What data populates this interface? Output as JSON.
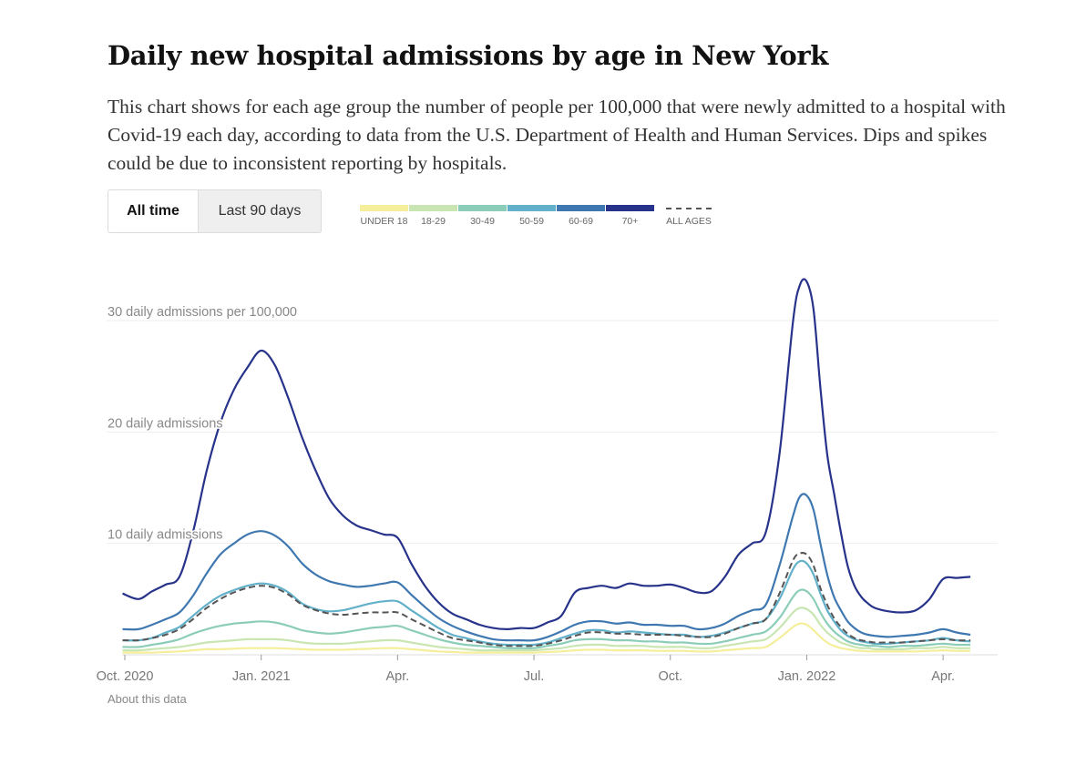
{
  "header": {
    "title": "Daily new hospital admissions by age in New York",
    "description": "This chart shows for each age group the number of people per 100,000 that were newly admitted to a hospital with Covid-19 each day, according to data from the U.S. Department of Health and Human Services. Dips and spikes could be due to inconsistent reporting by hospitals."
  },
  "toggle": {
    "all_time": "All time",
    "last_90": "Last 90 days"
  },
  "legend": {
    "items": [
      {
        "label": "UNDER 18",
        "color": "#f5ee9b"
      },
      {
        "label": "18-29",
        "color": "#c9e6b2"
      },
      {
        "label": "30-49",
        "color": "#8ccdb9"
      },
      {
        "label": "50-59",
        "color": "#62b0c9"
      },
      {
        "label": "60-69",
        "color": "#3f78b0"
      },
      {
        "label": "70+",
        "color": "#27338a"
      }
    ],
    "all_ages": {
      "label": "ALL AGES",
      "color": "#555555"
    }
  },
  "about_link": "About this data",
  "chart_data": {
    "type": "line",
    "title": "Daily new hospital admissions by age in New York",
    "ylabel": "daily admissions per 100,000",
    "ylim": [
      0,
      34
    ],
    "xlim": [
      0,
      19.2
    ],
    "y_ticks": [
      {
        "value": 10,
        "label": "10 daily admissions"
      },
      {
        "value": 20,
        "label": "20 daily admissions"
      },
      {
        "value": 30,
        "label": "30 daily admissions per 100,000"
      }
    ],
    "x_ticks": [
      {
        "value": 0,
        "label": "Oct. 2020"
      },
      {
        "value": 3,
        "label": "Jan. 2021"
      },
      {
        "value": 6,
        "label": "Apr."
      },
      {
        "value": 9,
        "label": "Jul."
      },
      {
        "value": 12,
        "label": "Oct."
      },
      {
        "value": 15,
        "label": "Jan. 2022"
      },
      {
        "value": 18,
        "label": "Apr."
      }
    ],
    "x": [
      -0.05,
      0.3,
      0.6,
      0.9,
      1.2,
      1.5,
      1.8,
      2.1,
      2.4,
      2.7,
      3.0,
      3.3,
      3.6,
      3.9,
      4.2,
      4.5,
      4.8,
      5.1,
      5.4,
      5.7,
      6.0,
      6.3,
      6.6,
      6.9,
      7.2,
      7.5,
      7.8,
      8.1,
      8.4,
      8.7,
      9.0,
      9.3,
      9.6,
      9.9,
      10.2,
      10.5,
      10.8,
      11.1,
      11.4,
      11.7,
      12.0,
      12.3,
      12.6,
      12.9,
      13.2,
      13.5,
      13.8,
      14.1,
      14.4,
      14.7,
      14.85,
      15.0,
      15.15,
      15.3,
      15.45,
      15.6,
      15.75,
      15.9,
      16.05,
      16.2,
      16.35,
      16.5,
      16.8,
      17.1,
      17.4,
      17.7,
      18.0,
      18.3,
      18.6
    ],
    "series": [
      {
        "name": "70+",
        "color": "#27338a",
        "values": [
          5.5,
          5.0,
          5.7,
          6.3,
          7.0,
          11.0,
          16.5,
          20.8,
          23.8,
          25.8,
          27.3,
          26.0,
          23.0,
          19.5,
          16.5,
          14.0,
          12.5,
          11.6,
          11.2,
          10.8,
          10.5,
          8.2,
          6.2,
          4.7,
          3.7,
          3.2,
          2.7,
          2.4,
          2.3,
          2.4,
          2.4,
          2.9,
          3.5,
          5.6,
          6.0,
          6.2,
          6.0,
          6.4,
          6.2,
          6.2,
          6.3,
          6.0,
          5.6,
          5.7,
          7.0,
          9.0,
          10.0,
          11.0,
          18.0,
          30.0,
          33.2,
          33.5,
          31.0,
          24.0,
          18.0,
          14.5,
          11.0,
          8.0,
          6.2,
          5.2,
          4.6,
          4.2,
          3.9,
          3.8,
          4.0,
          5.0,
          6.8,
          6.9,
          7.0
        ]
      },
      {
        "name": "60-69",
        "color": "#3f78b0",
        "values": [
          2.3,
          2.3,
          2.7,
          3.2,
          3.8,
          5.3,
          7.3,
          9.0,
          10.0,
          10.8,
          11.1,
          10.7,
          9.7,
          8.2,
          7.2,
          6.6,
          6.3,
          6.1,
          6.2,
          6.4,
          6.5,
          5.4,
          4.3,
          3.3,
          2.6,
          2.1,
          1.7,
          1.4,
          1.3,
          1.3,
          1.3,
          1.6,
          2.1,
          2.7,
          3.0,
          3.0,
          2.8,
          2.9,
          2.7,
          2.7,
          2.6,
          2.6,
          2.3,
          2.4,
          2.8,
          3.5,
          4.0,
          4.5,
          8.0,
          12.5,
          14.2,
          14.3,
          13.0,
          10.0,
          7.2,
          5.2,
          4.0,
          3.0,
          2.4,
          2.0,
          1.8,
          1.7,
          1.6,
          1.7,
          1.8,
          2.0,
          2.3,
          2.0,
          1.8
        ]
      },
      {
        "name": "50-59",
        "color": "#62b0c9",
        "values": [
          1.3,
          1.3,
          1.5,
          2.0,
          2.5,
          3.5,
          4.5,
          5.3,
          5.8,
          6.2,
          6.4,
          6.2,
          5.6,
          4.6,
          4.1,
          3.9,
          4.0,
          4.3,
          4.6,
          4.8,
          4.8,
          4.0,
          3.2,
          2.4,
          1.8,
          1.5,
          1.2,
          1.0,
          0.9,
          0.9,
          0.9,
          1.1,
          1.5,
          1.9,
          2.2,
          2.2,
          2.0,
          2.1,
          2.0,
          1.9,
          1.8,
          1.8,
          1.6,
          1.7,
          2.0,
          2.4,
          2.8,
          3.2,
          5.0,
          7.7,
          8.4,
          8.2,
          7.2,
          5.5,
          4.0,
          3.0,
          2.2,
          1.7,
          1.4,
          1.2,
          1.1,
          1.0,
          1.0,
          1.1,
          1.2,
          1.3,
          1.5,
          1.3,
          1.2
        ]
      },
      {
        "name": "30-49",
        "color": "#8ccdb9",
        "values": [
          0.7,
          0.7,
          0.9,
          1.1,
          1.4,
          1.9,
          2.3,
          2.6,
          2.8,
          2.9,
          3.0,
          2.9,
          2.6,
          2.2,
          2.0,
          1.9,
          2.0,
          2.2,
          2.4,
          2.5,
          2.6,
          2.2,
          1.8,
          1.4,
          1.1,
          0.9,
          0.8,
          0.7,
          0.6,
          0.6,
          0.6,
          0.8,
          1.0,
          1.3,
          1.4,
          1.4,
          1.3,
          1.3,
          1.2,
          1.2,
          1.1,
          1.1,
          1.0,
          1.0,
          1.2,
          1.5,
          1.8,
          2.1,
          3.3,
          5.2,
          5.8,
          5.7,
          5.0,
          3.8,
          2.8,
          2.1,
          1.6,
          1.2,
          1.0,
          0.9,
          0.8,
          0.8,
          0.7,
          0.8,
          0.8,
          0.9,
          1.0,
          0.9,
          0.9
        ]
      },
      {
        "name": "18-29",
        "color": "#c9e6b2",
        "values": [
          0.4,
          0.4,
          0.5,
          0.6,
          0.7,
          0.9,
          1.1,
          1.2,
          1.3,
          1.4,
          1.4,
          1.4,
          1.3,
          1.1,
          1.0,
          1.0,
          1.0,
          1.1,
          1.2,
          1.3,
          1.3,
          1.1,
          0.9,
          0.7,
          0.6,
          0.5,
          0.4,
          0.4,
          0.4,
          0.4,
          0.4,
          0.5,
          0.6,
          0.8,
          0.9,
          0.9,
          0.8,
          0.8,
          0.8,
          0.7,
          0.7,
          0.7,
          0.6,
          0.6,
          0.8,
          1.0,
          1.2,
          1.4,
          2.4,
          3.8,
          4.2,
          4.1,
          3.6,
          2.7,
          2.0,
          1.5,
          1.1,
          0.9,
          0.7,
          0.6,
          0.6,
          0.5,
          0.5,
          0.5,
          0.6,
          0.6,
          0.7,
          0.6,
          0.6
        ]
      },
      {
        "name": "UNDER 18",
        "color": "#f5ee9b",
        "values": [
          0.2,
          0.2,
          0.2,
          0.25,
          0.3,
          0.4,
          0.5,
          0.5,
          0.55,
          0.6,
          0.6,
          0.6,
          0.55,
          0.5,
          0.45,
          0.45,
          0.45,
          0.5,
          0.55,
          0.6,
          0.6,
          0.5,
          0.4,
          0.3,
          0.25,
          0.2,
          0.2,
          0.2,
          0.2,
          0.2,
          0.2,
          0.25,
          0.3,
          0.4,
          0.45,
          0.45,
          0.4,
          0.4,
          0.4,
          0.35,
          0.35,
          0.35,
          0.3,
          0.3,
          0.4,
          0.5,
          0.6,
          0.7,
          1.5,
          2.5,
          2.8,
          2.7,
          2.2,
          1.6,
          1.1,
          0.8,
          0.6,
          0.5,
          0.4,
          0.35,
          0.3,
          0.3,
          0.3,
          0.3,
          0.3,
          0.35,
          0.4,
          0.35,
          0.35
        ]
      },
      {
        "name": "ALL AGES",
        "color": "#555555",
        "dashed": true,
        "values": [
          1.3,
          1.3,
          1.5,
          1.8,
          2.3,
          3.2,
          4.2,
          5.0,
          5.6,
          6.0,
          6.2,
          6.0,
          5.4,
          4.5,
          4.0,
          3.7,
          3.6,
          3.7,
          3.8,
          3.8,
          3.8,
          3.2,
          2.6,
          2.0,
          1.5,
          1.3,
          1.1,
          0.9,
          0.8,
          0.8,
          0.8,
          1.0,
          1.3,
          1.7,
          2.0,
          2.0,
          1.9,
          1.9,
          1.8,
          1.8,
          1.8,
          1.7,
          1.6,
          1.6,
          1.9,
          2.4,
          2.8,
          3.2,
          5.5,
          8.5,
          9.1,
          9.0,
          8.0,
          6.0,
          4.5,
          3.3,
          2.5,
          1.9,
          1.5,
          1.3,
          1.2,
          1.1,
          1.1,
          1.1,
          1.2,
          1.3,
          1.4,
          1.3,
          1.3
        ]
      }
    ]
  }
}
